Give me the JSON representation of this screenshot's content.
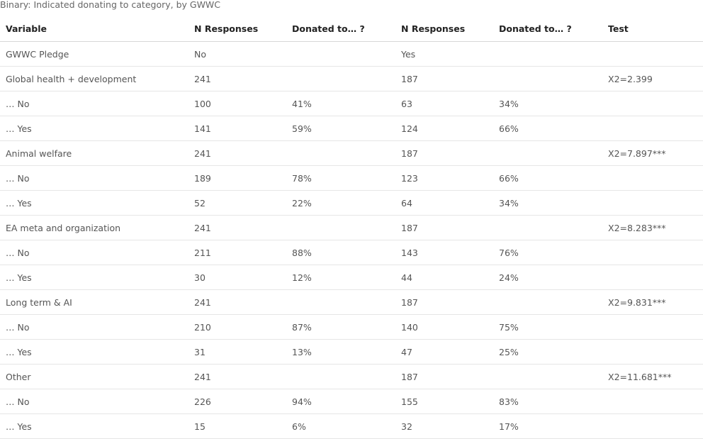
{
  "caption": "Binary: Indicated donating to category, by GWWC",
  "table": {
    "headers": [
      "Variable",
      "N Responses",
      "Donated to… ?",
      "N Responses",
      "Donated to… ?",
      "Test"
    ],
    "rows": [
      [
        "GWWC Pledge",
        "No",
        "",
        "Yes",
        "",
        ""
      ],
      [
        "Global health + development",
        "241",
        "",
        "187",
        "",
        "X2=2.399"
      ],
      [
        "… No",
        "100",
        "41%",
        "63",
        "34%",
        ""
      ],
      [
        "… Yes",
        "141",
        "59%",
        "124",
        "66%",
        ""
      ],
      [
        "Animal welfare",
        "241",
        "",
        "187",
        "",
        "X2=7.897***"
      ],
      [
        "… No",
        "189",
        "78%",
        "123",
        "66%",
        ""
      ],
      [
        "… Yes",
        "52",
        "22%",
        "64",
        "34%",
        ""
      ],
      [
        "EA meta and organization",
        "241",
        "",
        "187",
        "",
        "X2=8.283***"
      ],
      [
        "… No",
        "211",
        "88%",
        "143",
        "76%",
        ""
      ],
      [
        "… Yes",
        "30",
        "12%",
        "44",
        "24%",
        ""
      ],
      [
        "Long term & AI",
        "241",
        "",
        "187",
        "",
        "X2=9.831***"
      ],
      [
        "… No",
        "210",
        "87%",
        "140",
        "75%",
        ""
      ],
      [
        "… Yes",
        "31",
        "13%",
        "47",
        "25%",
        ""
      ],
      [
        "Other",
        "241",
        "",
        "187",
        "",
        "X2=11.681***"
      ],
      [
        "… No",
        "226",
        "94%",
        "155",
        "83%",
        ""
      ],
      [
        "… Yes",
        "15",
        "6%",
        "32",
        "17%",
        ""
      ]
    ]
  }
}
